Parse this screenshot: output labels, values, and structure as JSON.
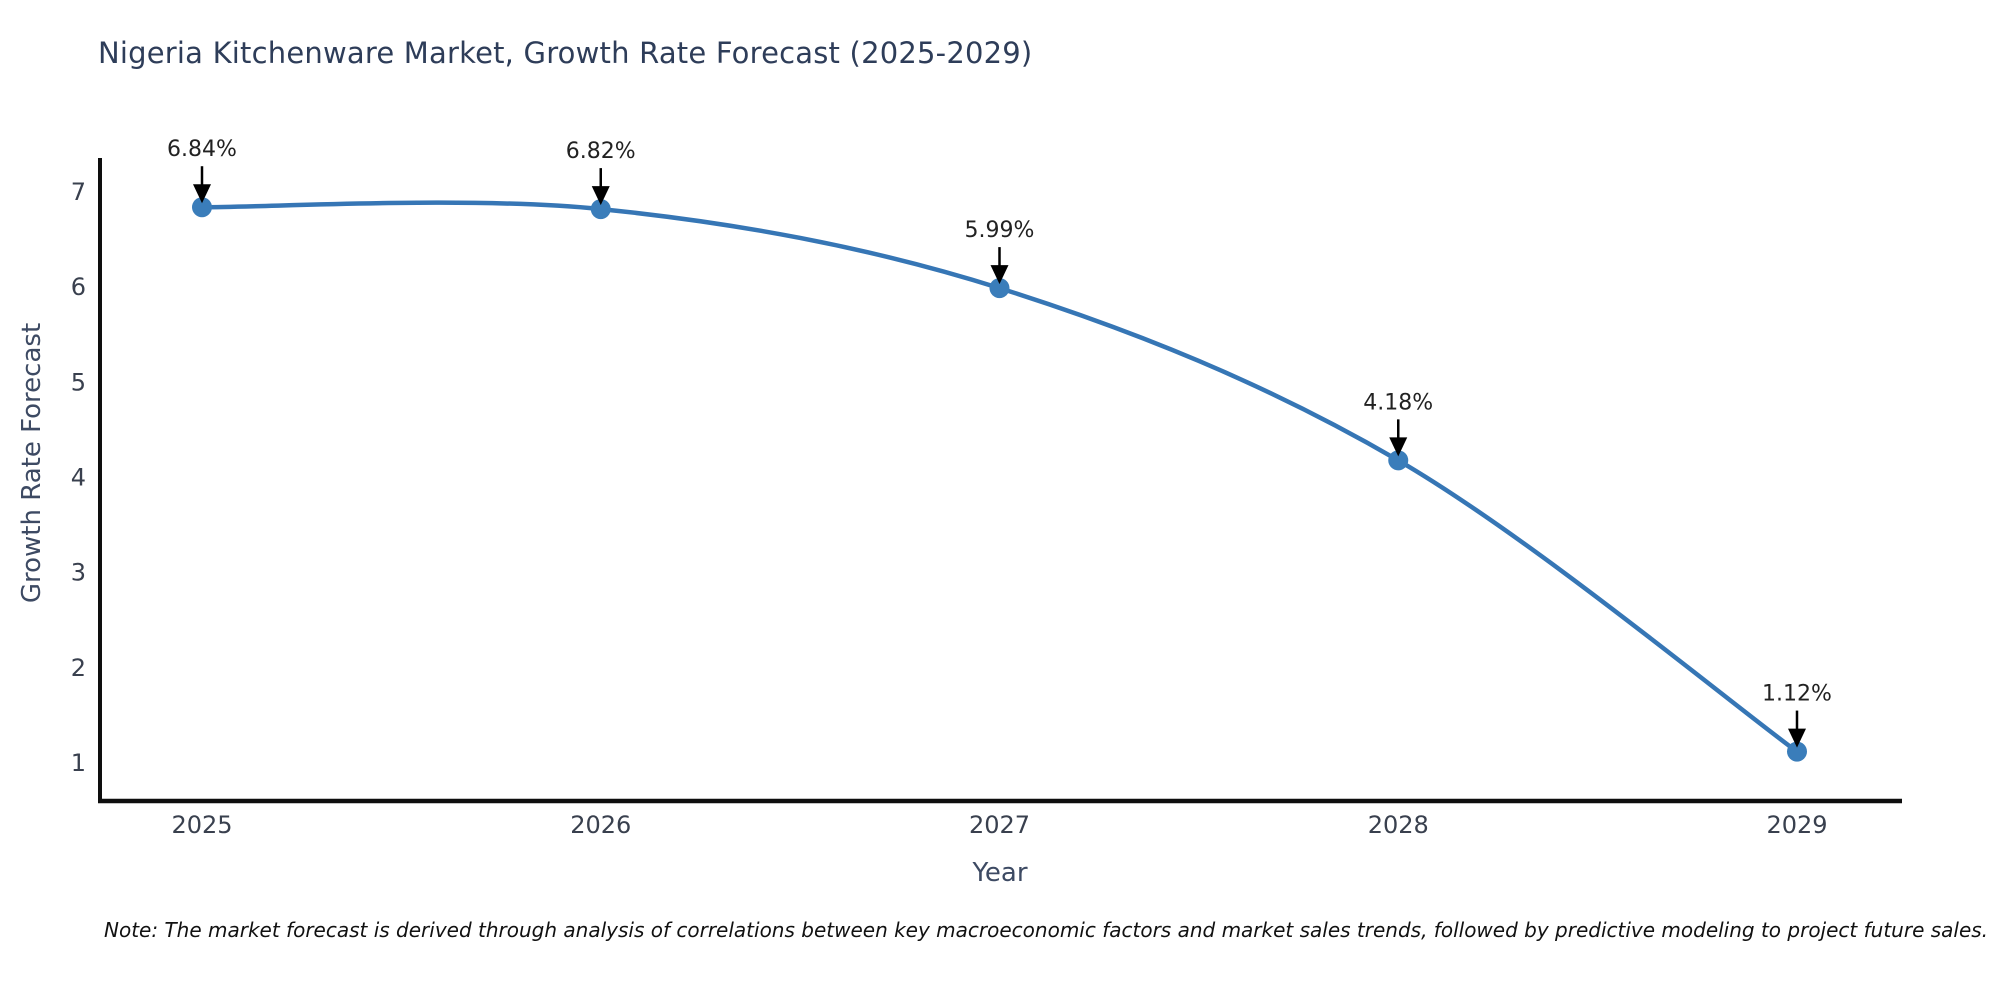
{
  "chart_data": {
    "type": "line",
    "title": "Nigeria Kitchenware Market, Growth Rate Forecast (2025-2029)",
    "xlabel": "Year",
    "ylabel": "Growth Rate Forecast",
    "categories": [
      "2025",
      "2026",
      "2027",
      "2028",
      "2029"
    ],
    "values": [
      6.84,
      6.82,
      5.99,
      4.18,
      1.12
    ],
    "point_labels": [
      "6.84%",
      "6.82%",
      "5.99%",
      "4.18%",
      "1.12%"
    ],
    "yticks": [
      1,
      2,
      3,
      4,
      5,
      6,
      7
    ],
    "ylim": [
      0.6,
      7.35
    ],
    "grid": false,
    "legend_position": "none",
    "colors": {
      "line": "#3676b5",
      "marker": "#3a7dba",
      "annotation_text": "#222222",
      "annotation_arrow": "#000000",
      "title": "#2e3d59",
      "axis_title": "#3d4a63",
      "tick_label": "#39404e",
      "spine": "#0e0e0e"
    }
  },
  "note": "Note: The market forecast is derived through analysis of correlations between key macroeconomic factors and market sales trends, followed by predictive modeling to project future sales."
}
